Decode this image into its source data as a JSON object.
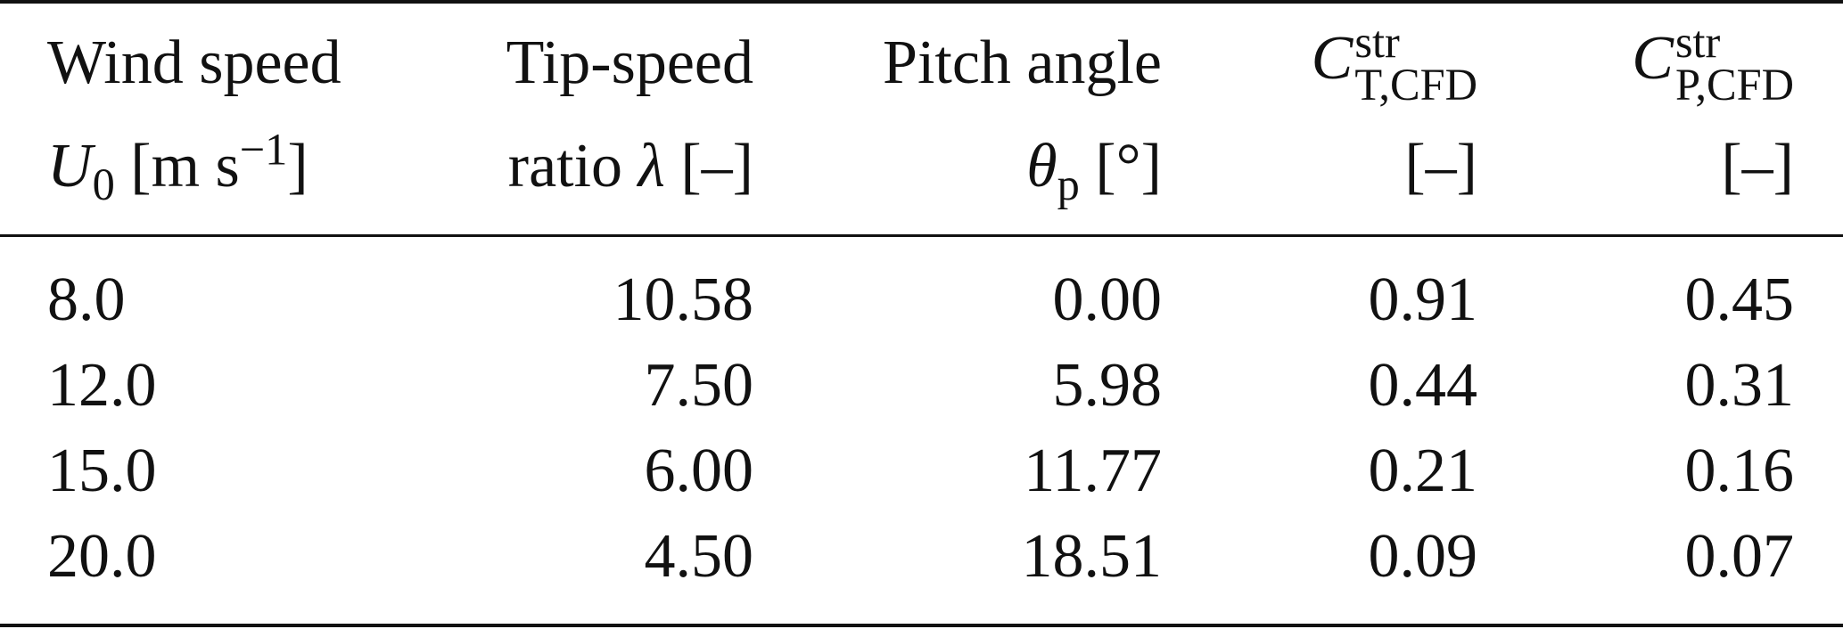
{
  "table": {
    "headers": [
      {
        "line1": "Wind speed",
        "line2_sym": "U",
        "line2_sub": "0",
        "line2_unit_pre": " [m s",
        "line2_unit_sup": "−1",
        "line2_unit_post": "]"
      },
      {
        "line1": "Tip-speed",
        "line2_pre": "ratio ",
        "line2_sym": "λ",
        "line2_post": " [–]"
      },
      {
        "line1": "Pitch angle",
        "line2_sym": "θ",
        "line2_sub": "p",
        "line2_post": " [°]"
      },
      {
        "line1_sym": "C",
        "line1_sup": "str",
        "line1_sub": "T,CFD",
        "line2": "[–]"
      },
      {
        "line1_sym": "C",
        "line1_sup": "str",
        "line1_sub": "P,CFD",
        "line2": "[–]"
      }
    ],
    "rows": [
      [
        "8.0",
        "10.58",
        "0.00",
        "0.91",
        "0.45"
      ],
      [
        "12.0",
        "7.50",
        "5.98",
        "0.44",
        "0.31"
      ],
      [
        "15.0",
        "6.00",
        "11.77",
        "0.21",
        "0.16"
      ],
      [
        "20.0",
        "4.50",
        "18.51",
        "0.09",
        "0.07"
      ]
    ]
  }
}
